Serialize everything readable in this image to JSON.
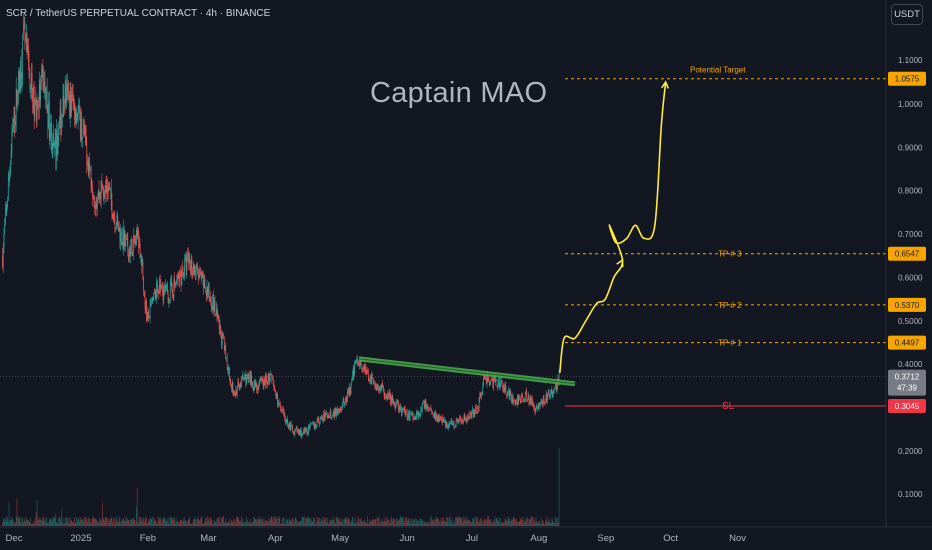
{
  "header": {
    "title": "SCR / TetherUS PERPETUAL CONTRACT · 4h · BINANCE",
    "currency": "USDT"
  },
  "watermark": "Captain MAO",
  "colors": {
    "background": "#131722",
    "up": "#26a69a",
    "down": "#ef5350",
    "target": "#f7a600",
    "stop": "#f23645",
    "trendline": "#4caf50",
    "projection": "#ffeb3b",
    "current_price": "#787b86"
  },
  "chart_data": {
    "type": "candlestick",
    "symbol": "SCR / TetherUS PERPETUAL CONTRACT",
    "interval": "4h",
    "exchange": "BINANCE",
    "y_axis": {
      "ticks": [
        "1.1000",
        "1.0000",
        "0.9000",
        "0.8000",
        "0.7000",
        "0.6000",
        "0.5000",
        "0.4000",
        "0.2000",
        "0.1000"
      ]
    },
    "x_axis": {
      "ticks": [
        "Dec",
        "2025",
        "Feb",
        "Mar",
        "Apr",
        "May",
        "Jun",
        "Jul",
        "Aug",
        "Sep",
        "Oct",
        "Nov"
      ]
    },
    "price_path": [
      [
        "2024-11-28",
        0.65
      ],
      [
        "2024-12-03",
        0.95
      ],
      [
        "2024-12-08",
        1.15
      ],
      [
        "2024-12-13",
        0.98
      ],
      [
        "2024-12-17",
        1.05
      ],
      [
        "2024-12-22",
        0.88
      ],
      [
        "2024-12-27",
        1.02
      ],
      [
        "2025-01-01",
        0.99
      ],
      [
        "2025-01-05",
        0.92
      ],
      [
        "2025-01-10",
        0.78
      ],
      [
        "2025-01-15",
        0.82
      ],
      [
        "2025-01-20",
        0.72
      ],
      [
        "2025-01-25",
        0.66
      ],
      [
        "2025-01-30",
        0.69
      ],
      [
        "2025-02-03",
        0.5
      ],
      [
        "2025-02-08",
        0.58
      ],
      [
        "2025-02-13",
        0.56
      ],
      [
        "2025-02-18",
        0.6
      ],
      [
        "2025-02-22",
        0.64
      ],
      [
        "2025-02-27",
        0.6
      ],
      [
        "2025-03-05",
        0.55
      ],
      [
        "2025-03-10",
        0.45
      ],
      [
        "2025-03-15",
        0.33
      ],
      [
        "2025-03-20",
        0.37
      ],
      [
        "2025-03-26",
        0.35
      ],
      [
        "2025-04-01",
        0.37
      ],
      [
        "2025-04-06",
        0.29
      ],
      [
        "2025-04-11",
        0.25
      ],
      [
        "2025-04-16",
        0.24
      ],
      [
        "2025-04-21",
        0.26
      ],
      [
        "2025-04-26",
        0.28
      ],
      [
        "2025-05-01",
        0.29
      ],
      [
        "2025-05-05",
        0.31
      ],
      [
        "2025-05-08",
        0.34
      ],
      [
        "2025-05-11",
        0.42
      ],
      [
        "2025-05-14",
        0.39
      ],
      [
        "2025-05-18",
        0.36
      ],
      [
        "2025-05-23",
        0.34
      ],
      [
        "2025-05-28",
        0.31
      ],
      [
        "2025-06-02",
        0.29
      ],
      [
        "2025-06-07",
        0.28
      ],
      [
        "2025-06-12",
        0.31
      ],
      [
        "2025-06-17",
        0.28
      ],
      [
        "2025-06-22",
        0.26
      ],
      [
        "2025-06-27",
        0.27
      ],
      [
        "2025-07-02",
        0.28
      ],
      [
        "2025-07-06",
        0.3
      ],
      [
        "2025-07-09",
        0.37
      ],
      [
        "2025-07-13",
        0.36
      ],
      [
        "2025-07-18",
        0.35
      ],
      [
        "2025-07-23",
        0.31
      ],
      [
        "2025-07-28",
        0.33
      ],
      [
        "2025-08-02",
        0.3
      ],
      [
        "2025-08-06",
        0.32
      ],
      [
        "2025-08-10",
        0.34
      ],
      [
        "2025-08-13",
        0.3712
      ]
    ],
    "current_price": "0.3712",
    "countdown": "47:39",
    "trendline": {
      "start": [
        "2025-05-12",
        0.412
      ],
      "end": [
        "2025-08-20",
        0.355
      ]
    },
    "levels": [
      {
        "label": "Potential Target",
        "price": "1.0575",
        "kind": "target"
      },
      {
        "label": "TP # 3",
        "price": "0.6547",
        "kind": "target"
      },
      {
        "label": "TP # 2",
        "price": "0.5370",
        "kind": "target"
      },
      {
        "label": "TP # 1",
        "price": "0.4497",
        "kind": "target"
      },
      {
        "label": "SL",
        "price": "0.3045",
        "kind": "stop"
      }
    ],
    "projection_path": [
      [
        "2025-08-13",
        0.38
      ],
      [
        "2025-08-15",
        0.46
      ],
      [
        "2025-08-20",
        0.46
      ],
      [
        "2025-08-25",
        0.5
      ],
      [
        "2025-08-30",
        0.54
      ],
      [
        "2025-09-03",
        0.55
      ],
      [
        "2025-09-07",
        0.6
      ],
      [
        "2025-09-11",
        0.64
      ],
      [
        "2025-09-05",
        0.72
      ],
      [
        "2025-09-08",
        0.68
      ],
      [
        "2025-09-13",
        0.69
      ],
      [
        "2025-09-17",
        0.72
      ],
      [
        "2025-09-21",
        0.69
      ],
      [
        "2025-09-26",
        0.72
      ],
      [
        "2025-09-29",
        0.95
      ],
      [
        "2025-10-01",
        1.05
      ]
    ]
  }
}
